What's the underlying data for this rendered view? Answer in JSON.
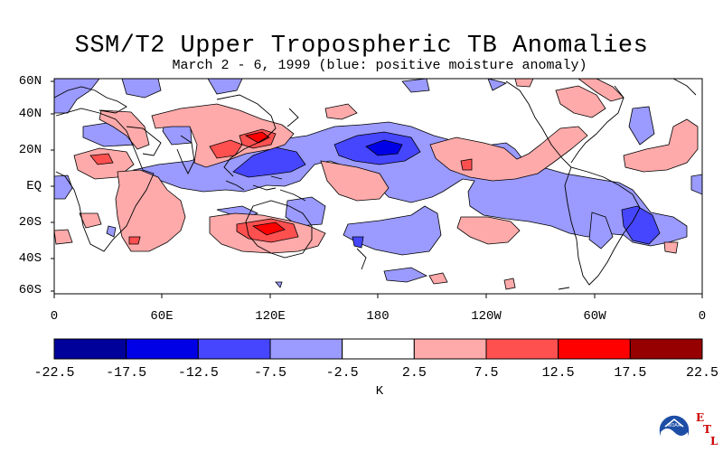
{
  "title": "SSM/T2 Upper Tropospheric TB Anomalies",
  "subtitle": "March 2 - 6, 1999 (blue: positive moisture anomaly)",
  "lat_labels": [
    "60N",
    "40N",
    "20N",
    "EQ",
    "20S",
    "40S",
    "60S"
  ],
  "lon_labels": [
    "0",
    "60E",
    "120E",
    "180",
    "120W",
    "60W",
    "0"
  ],
  "colorbar": {
    "unit": "K",
    "ticks": [
      "-22.5",
      "-17.5",
      "-12.5",
      "-7.5",
      "-2.5",
      "2.5",
      "7.5",
      "12.5",
      "17.5",
      "22.5"
    ],
    "colors": [
      "#00009a",
      "#0000e6",
      "#4646ff",
      "#9a9aff",
      "#ffffff",
      "#ffaaaa",
      "#ff5050",
      "#ff0000",
      "#960000"
    ]
  },
  "colors": {
    "neg1": "#9a9aff",
    "neg2": "#4646ff",
    "neg3": "#0000e6",
    "pos1": "#ffaaaa",
    "pos2": "#ff5050",
    "pos3": "#ff0000"
  },
  "logo": {
    "text": "NOAA",
    "letters": [
      "E",
      "T",
      "L"
    ]
  }
}
